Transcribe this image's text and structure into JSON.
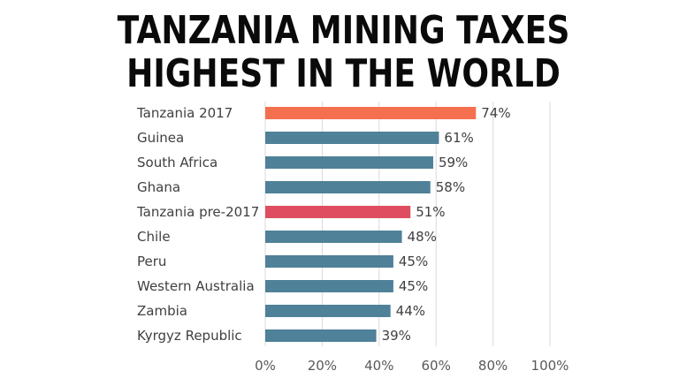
{
  "chart_data": {
    "type": "bar",
    "orientation": "horizontal",
    "title_lines": [
      "TANZANIA MINING TAXES",
      "HIGHEST IN THE WORLD"
    ],
    "categories": [
      "Tanzania 2017",
      "Guinea",
      "South Africa",
      "Ghana",
      "Tanzania pre-2017",
      "Chile",
      "Peru",
      "Western Australia",
      "Zambia",
      "Kyrgyz Republic"
    ],
    "values": [
      74,
      61,
      59,
      58,
      51,
      48,
      45,
      45,
      44,
      39
    ],
    "value_labels": [
      "74%",
      "61%",
      "59%",
      "58%",
      "51%",
      "48%",
      "45%",
      "45%",
      "44%",
      "39%"
    ],
    "bar_colors": [
      "#f5704f",
      "#4f8198",
      "#4f8198",
      "#4f8198",
      "#de4e60",
      "#4f8198",
      "#4f8198",
      "#4f8198",
      "#4f8198",
      "#4f8198"
    ],
    "x_ticks": [
      0,
      20,
      40,
      60,
      80,
      100
    ],
    "x_tick_labels": [
      "0%",
      "20%",
      "40%",
      "60%",
      "80%",
      "100%"
    ],
    "xlim": [
      0,
      100
    ],
    "grid": true,
    "gridline_color": "#d9d9d9"
  }
}
